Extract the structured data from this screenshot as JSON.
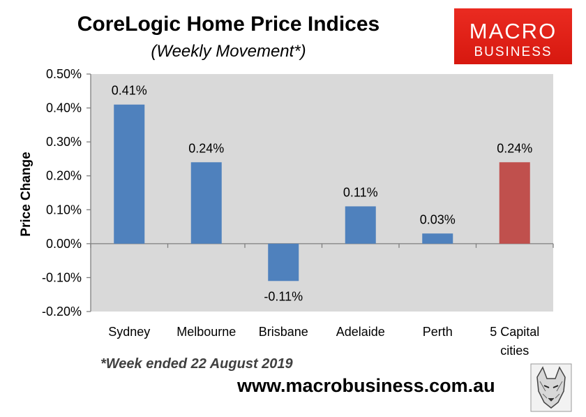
{
  "header": {
    "title": "CoreLogic Home Price Indices",
    "subtitle": "(Weekly Movement*)"
  },
  "logo": {
    "line1": "MACRO",
    "line2": "BUSINESS"
  },
  "footer": {
    "footnote": "*Week ended 22 August 2019",
    "website": "www.macrobusiness.com.au"
  },
  "colors": {
    "plot_background": "#d9d9d9",
    "bar_default": "#4f81bd",
    "bar_highlight": "#c0504d",
    "logo_red": "#e3211a"
  },
  "chart_data": {
    "type": "bar",
    "title": "CoreLogic Home Price Indices",
    "subtitle": "(Weekly Movement*)",
    "xlabel": "",
    "ylabel": "Price Change",
    "ylim": [
      -0.2,
      0.5
    ],
    "yticks": [
      0.5,
      0.4,
      0.3,
      0.2,
      0.1,
      0.0,
      -0.1,
      -0.2
    ],
    "ytick_labels": [
      "0.50%",
      "0.40%",
      "0.30%",
      "0.20%",
      "0.10%",
      "0.00%",
      "-0.10%",
      "-0.20%"
    ],
    "grid": false,
    "legend": "none",
    "categories": [
      "Sydney",
      "Melbourne",
      "Brisbane",
      "Adelaide",
      "Perth",
      "5 Capital cities"
    ],
    "category_lines": [
      [
        "Sydney"
      ],
      [
        "Melbourne"
      ],
      [
        "Brisbane"
      ],
      [
        "Adelaide"
      ],
      [
        "Perth"
      ],
      [
        "5 Capital",
        "cities"
      ]
    ],
    "values": [
      0.41,
      0.24,
      -0.11,
      0.11,
      0.03,
      0.24
    ],
    "value_labels": [
      "0.41%",
      "0.24%",
      "-0.11%",
      "0.11%",
      "0.03%",
      "0.24%"
    ],
    "bar_colors": [
      "#4f81bd",
      "#4f81bd",
      "#4f81bd",
      "#4f81bd",
      "#4f81bd",
      "#c0504d"
    ]
  }
}
